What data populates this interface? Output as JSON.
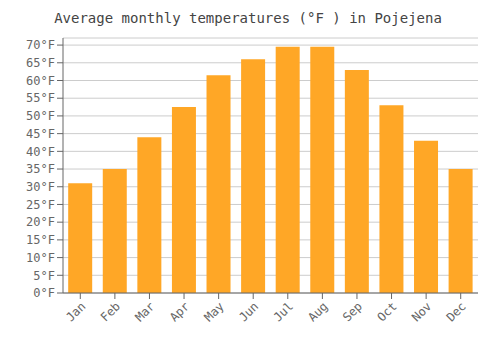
{
  "chart_data": {
    "type": "bar",
    "title": "Average monthly temperatures (°F ) in Pojejena",
    "categories": [
      "Jan",
      "Feb",
      "Mar",
      "Apr",
      "May",
      "Jun",
      "Jul",
      "Aug",
      "Sep",
      "Oct",
      "Nov",
      "Dec"
    ],
    "values": [
      31,
      35,
      44,
      52.5,
      61.5,
      66,
      69.5,
      69.5,
      63,
      53,
      43,
      35
    ],
    "color": "#FFA726",
    "ylim": [
      0,
      72
    ],
    "yticks": [
      {
        "value": 0,
        "label": "0°F"
      },
      {
        "value": 5,
        "label": "5°F"
      },
      {
        "value": 10,
        "label": "10°F"
      },
      {
        "value": 15,
        "label": "15°F"
      },
      {
        "value": 20,
        "label": "20°F"
      },
      {
        "value": 25,
        "label": "25°F"
      },
      {
        "value": 30,
        "label": "30°F"
      },
      {
        "value": 35,
        "label": "35°F"
      },
      {
        "value": 40,
        "label": "40°F"
      },
      {
        "value": 45,
        "label": "45°F"
      },
      {
        "value": 50,
        "label": "50°F"
      },
      {
        "value": 55,
        "label": "55°F"
      },
      {
        "value": 60,
        "label": "60°F"
      },
      {
        "value": 65,
        "label": "65°F"
      },
      {
        "value": 70,
        "label": "70°F"
      }
    ],
    "grid": true
  }
}
